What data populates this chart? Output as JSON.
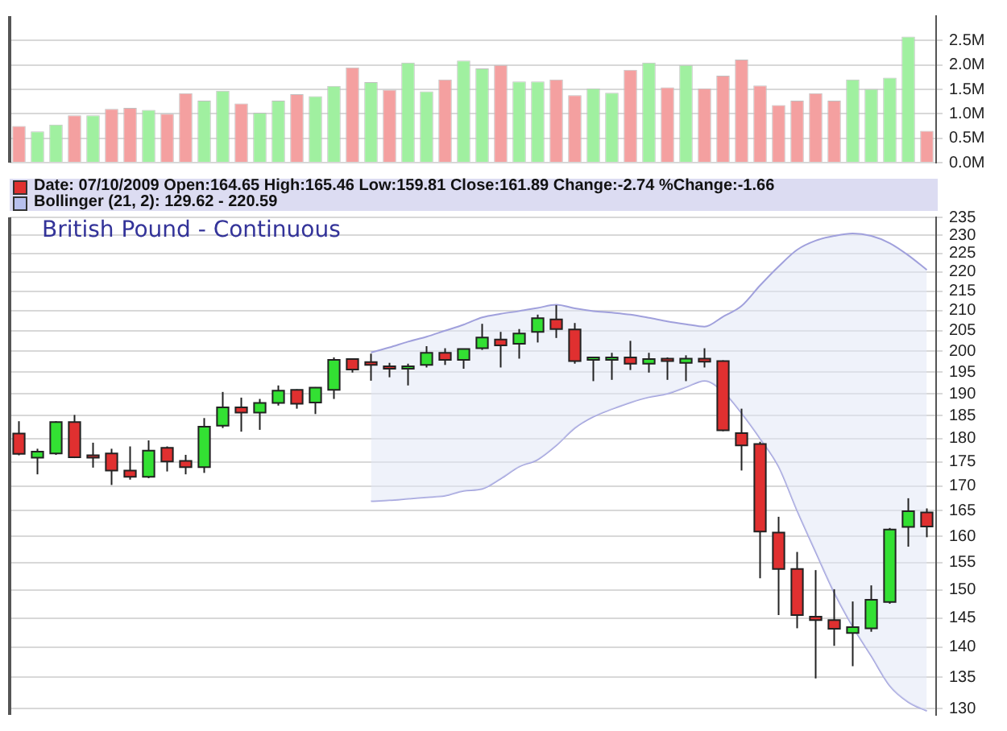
{
  "chart_data": [
    {
      "type": "bar",
      "categories": [
        null,
        null,
        null,
        null,
        null,
        null,
        null,
        null,
        null,
        null,
        null,
        null,
        null,
        null,
        null,
        null,
        null,
        null,
        null,
        null,
        null,
        null,
        null,
        null,
        null,
        null,
        null,
        null,
        null,
        null,
        null,
        null,
        null,
        null,
        null,
        null,
        null,
        null,
        null,
        null,
        null,
        null,
        null,
        null,
        null,
        null,
        null,
        null,
        null,
        null
      ],
      "values": [
        0.75,
        0.64,
        0.78,
        0.97,
        0.97,
        1.1,
        1.12,
        1.08,
        1.0,
        1.42,
        1.27,
        1.47,
        1.21,
        1.02,
        1.27,
        1.4,
        1.36,
        1.57,
        1.95,
        1.65,
        1.49,
        2.05,
        1.46,
        1.7,
        2.09,
        1.93,
        2.0,
        1.66,
        1.66,
        1.7,
        1.38,
        1.52,
        1.43,
        1.9,
        2.05,
        1.54,
        2.0,
        1.52,
        1.78,
        2.11,
        1.58,
        1.18,
        1.27,
        1.42,
        1.27,
        1.7,
        1.51,
        1.74,
        2.58,
        0.65
      ],
      "colors": [
        "#f4a0a0",
        "#a0f0a0",
        "#a0f0a0",
        "#f4a0a0",
        "#a0f0a0",
        "#f4a0a0",
        "#f4a0a0",
        "#a0f0a0",
        "#f4a0a0",
        "#f4a0a0",
        "#a0f0a0",
        "#a0f0a0",
        "#f4a0a0",
        "#a0f0a0",
        "#a0f0a0",
        "#f4a0a0",
        "#a0f0a0",
        "#a0f0a0",
        "#f4a0a0",
        "#a0f0a0",
        "#f4a0a0",
        "#a0f0a0",
        "#a0f0a0",
        "#f4a0a0",
        "#a0f0a0",
        "#a0f0a0",
        "#f4a0a0",
        "#a0f0a0",
        "#a0f0a0",
        "#f4a0a0",
        "#f4a0a0",
        "#a0f0a0",
        "#a0f0a0",
        "#f4a0a0",
        "#a0f0a0",
        "#f4a0a0",
        "#a0f0a0",
        "#f4a0a0",
        "#f4a0a0",
        "#f4a0a0",
        "#f4a0a0",
        "#f4a0a0",
        "#f4a0a0",
        "#f4a0a0",
        "#f4a0a0",
        "#a0f0a0",
        "#a0f0a0",
        "#a0f0a0",
        "#a0f0a0",
        "#f4a0a0"
      ],
      "ylim": [
        0,
        3
      ],
      "yticks": [
        {
          "value": 0,
          "label": "0.0M"
        },
        {
          "value": 0.5,
          "label": "0.5M"
        },
        {
          "value": 1,
          "label": "1.0M"
        },
        {
          "value": 1.5,
          "label": "1.5M"
        },
        {
          "value": 2,
          "label": "2.0M"
        },
        {
          "value": 2.5,
          "label": "2.5M"
        }
      ],
      "grid": "y",
      "tick_labels": "y"
    },
    {
      "type": "candlestick",
      "title": "British Pound - Continuous",
      "annotations": [
        "Date: 07/10/2009 Open:164.65 High:165.46 Low:159.81 Close:161.89 Change:-2.74 %Change:-1.66",
        "Bollinger (21, 2): 129.62 - 220.59"
      ],
      "categories": [
        null,
        null,
        null,
        null,
        null,
        null,
        null,
        null,
        null,
        null,
        null,
        null,
        null,
        null,
        null,
        null,
        null,
        null,
        null,
        null,
        null,
        null,
        null,
        null,
        null,
        null,
        null,
        null,
        null,
        null,
        null,
        null,
        null,
        null,
        null,
        null,
        null,
        null,
        null,
        null,
        null,
        null,
        null,
        null,
        null,
        null,
        null,
        null,
        null,
        null
      ],
      "ohlc": [
        [
          181.1,
          183.8,
          176.4,
          176.7
        ],
        [
          175.9,
          177.8,
          172.4,
          177.2
        ],
        [
          176.8,
          183.8,
          176.5,
          183.6
        ],
        [
          183.6,
          185.2,
          175.8,
          176.0
        ],
        [
          176.4,
          179.1,
          173.8,
          176.3
        ],
        [
          176.8,
          177.8,
          170.2,
          173.2
        ],
        [
          173.2,
          178.3,
          171.3,
          171.9
        ],
        [
          171.9,
          179.6,
          171.6,
          177.4
        ],
        [
          178.0,
          178.3,
          173.0,
          175.1
        ],
        [
          175.2,
          176.5,
          172.4,
          173.9
        ],
        [
          173.9,
          184.5,
          172.7,
          182.6
        ],
        [
          182.8,
          190.4,
          182.3,
          186.9
        ],
        [
          186.9,
          189.1,
          181.5,
          185.7
        ],
        [
          185.7,
          188.8,
          181.9,
          187.9
        ],
        [
          187.9,
          191.9,
          187.3,
          190.7
        ],
        [
          190.9,
          191.0,
          186.6,
          187.7
        ],
        [
          188.0,
          191.5,
          185.4,
          191.4
        ],
        [
          190.9,
          198.5,
          188.8,
          197.9
        ],
        [
          198.1,
          198.2,
          194.9,
          195.6
        ],
        [
          197.4,
          199.4,
          193.0,
          196.7
        ],
        [
          196.4,
          197.2,
          193.8,
          195.8
        ],
        [
          195.8,
          197.0,
          191.9,
          196.4
        ],
        [
          196.7,
          201.2,
          196.1,
          199.6
        ],
        [
          199.6,
          200.7,
          196.7,
          197.9
        ],
        [
          197.9,
          200.6,
          195.8,
          200.5
        ],
        [
          200.7,
          206.7,
          200.3,
          203.3
        ],
        [
          202.8,
          204.7,
          196.1,
          201.4
        ],
        [
          201.8,
          205.4,
          198.2,
          204.3
        ],
        [
          204.7,
          209.0,
          202.1,
          208.1
        ],
        [
          207.8,
          211.4,
          203.2,
          205.4
        ],
        [
          205.3,
          206.9,
          197.0,
          197.6
        ],
        [
          197.9,
          198.6,
          192.9,
          198.5
        ],
        [
          198.2,
          199.6,
          193.2,
          198.5
        ],
        [
          198.5,
          202.5,
          195.5,
          197.0
        ],
        [
          197.0,
          199.6,
          194.9,
          198.1
        ],
        [
          198.2,
          198.5,
          193.2,
          197.9
        ],
        [
          197.2,
          199.0,
          192.9,
          198.2
        ],
        [
          198.2,
          200.7,
          196.1,
          197.5
        ],
        [
          197.6,
          197.8,
          181.6,
          181.8
        ],
        [
          181.2,
          186.6,
          173.2,
          178.5
        ],
        [
          178.8,
          179.3,
          152.1,
          160.9
        ],
        [
          160.7,
          163.8,
          145.5,
          153.8
        ],
        [
          153.8,
          157.0,
          143.2,
          145.5
        ],
        [
          145.2,
          153.6,
          134.8,
          144.6
        ],
        [
          144.6,
          150.1,
          140.2,
          143.1
        ],
        [
          142.4,
          147.9,
          136.8,
          143.4
        ],
        [
          143.2,
          150.8,
          142.6,
          148.2
        ],
        [
          147.8,
          161.6,
          147.5,
          161.3
        ],
        [
          161.8,
          167.5,
          158.0,
          164.9
        ],
        [
          164.65,
          165.46,
          159.81,
          161.89
        ]
      ],
      "colors": [
        "#e03030",
        "#33e033",
        "#33e033",
        "#e03030",
        "#e03030",
        "#e03030",
        "#e03030",
        "#33e033",
        "#e03030",
        "#e03030",
        "#33e033",
        "#33e033",
        "#e03030",
        "#33e033",
        "#33e033",
        "#e03030",
        "#33e033",
        "#33e033",
        "#e03030",
        "#e03030",
        "#e03030",
        "#33e033",
        "#33e033",
        "#e03030",
        "#33e033",
        "#33e033",
        "#e03030",
        "#33e033",
        "#33e033",
        "#e03030",
        "#e03030",
        "#33e033",
        "#33e033",
        "#e03030",
        "#33e033",
        "#e03030",
        "#33e033",
        "#e03030",
        "#e03030",
        "#e03030",
        "#e03030",
        "#e03030",
        "#e03030",
        "#e03030",
        "#e03030",
        "#33e033",
        "#33e033",
        "#33e033",
        "#33e033",
        "#e03030"
      ],
      "series": [
        {
          "type": "line",
          "color": "#a0a0dc",
          "values": [
            null,
            null,
            null,
            null,
            null,
            null,
            null,
            null,
            null,
            null,
            null,
            null,
            null,
            null,
            null,
            null,
            null,
            null,
            null,
            199.7,
            200.9,
            202.3,
            203.5,
            205.0,
            206.5,
            208.3,
            209.2,
            209.9,
            210.7,
            211.5,
            210.6,
            209.9,
            209.5,
            209.0,
            208.2,
            207.3,
            206.6,
            206.0,
            208.5,
            211.2,
            216.5,
            221.5,
            226.0,
            228.5,
            229.8,
            230.5,
            229.8,
            227.8,
            224.5,
            220.59
          ]
        },
        {
          "type": "line",
          "color": "#a0a0dc",
          "values": [
            null,
            null,
            null,
            null,
            null,
            null,
            null,
            null,
            null,
            null,
            null,
            null,
            null,
            null,
            null,
            null,
            null,
            null,
            null,
            166.9,
            167.1,
            167.4,
            167.7,
            168.0,
            169.0,
            169.4,
            171.5,
            174.0,
            175.5,
            178.5,
            182.3,
            184.8,
            186.5,
            188.0,
            189.2,
            190.0,
            191.5,
            193.0,
            190.5,
            185.6,
            180.0,
            174.0,
            165.0,
            157.0,
            149.5,
            143.5,
            138.5,
            133.6,
            131.0,
            129.62
          ],
          "upper": [
            null,
            null,
            null,
            null,
            null,
            null,
            null,
            null,
            null,
            null,
            null,
            null,
            null,
            null,
            null,
            null,
            null,
            null,
            null,
            199.7,
            200.9,
            202.3,
            203.5,
            205.0,
            206.5,
            208.3,
            209.2,
            209.9,
            210.7,
            211.5,
            210.6,
            209.9,
            209.5,
            209.0,
            208.2,
            207.3,
            206.6,
            206.0,
            208.5,
            211.2,
            216.5,
            221.5,
            226.0,
            228.5,
            229.8,
            230.5,
            229.8,
            227.8,
            224.5,
            220.59
          ],
          "lower": [
            null,
            null,
            null,
            null,
            null,
            null,
            null,
            null,
            null,
            null,
            null,
            null,
            null,
            null,
            null,
            null,
            null,
            null,
            null,
            166.9,
            167.1,
            167.4,
            167.7,
            168.0,
            169.0,
            169.4,
            171.5,
            174.0,
            175.5,
            178.5,
            182.3,
            184.8,
            186.5,
            188.0,
            189.2,
            190.0,
            191.5,
            193.0,
            190.5,
            185.6,
            180.0,
            174.0,
            165.0,
            157.0,
            149.5,
            143.5,
            138.5,
            133.6,
            131.0,
            129.62
          ]
        }
      ],
      "log": "y",
      "ylim": [
        129,
        235
      ],
      "yticks": [
        235,
        230,
        225,
        220,
        215,
        210,
        205,
        200,
        195,
        190,
        185,
        180,
        175,
        170,
        165,
        160,
        155,
        150,
        145,
        140,
        135,
        130
      ],
      "grid": "y",
      "tick_labels": "y"
    }
  ]
}
